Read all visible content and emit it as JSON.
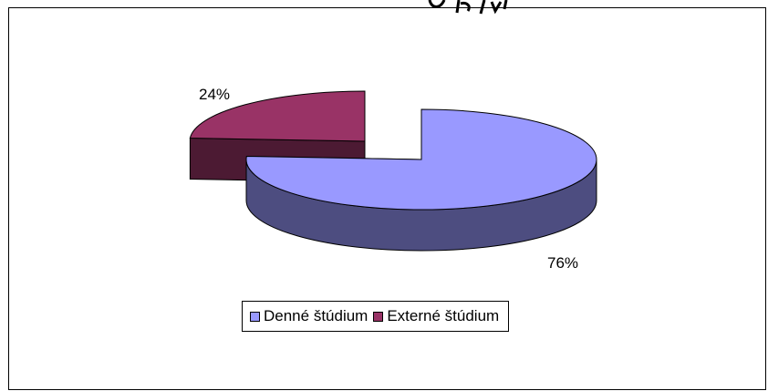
{
  "chart_data": {
    "type": "pie",
    "title": "",
    "categories": [
      "Denné štúdium",
      "Externé štúdium"
    ],
    "values": [
      76,
      24
    ],
    "data_labels": [
      "76%",
      "24%"
    ],
    "colors": {
      "denne_top": "#9999FF",
      "denne_side": "#4D4D80",
      "externe_top": "#993366",
      "externe_side": "#4C1A33"
    },
    "style": "3d-exploded-pie",
    "legend_position": "bottom"
  }
}
